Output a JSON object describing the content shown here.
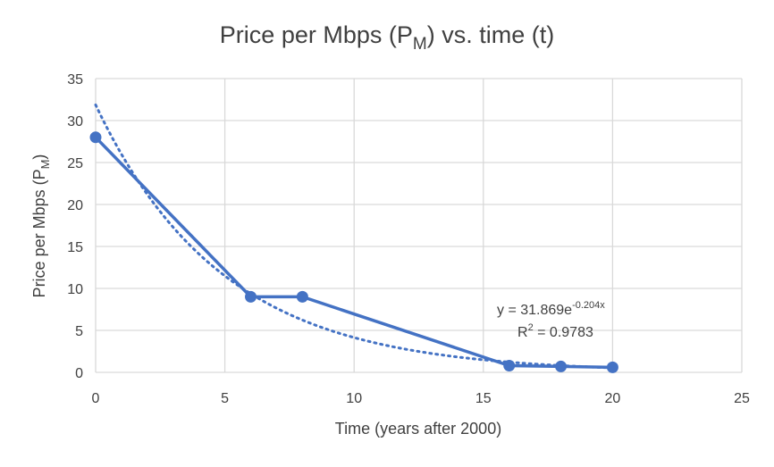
{
  "chart_data": {
    "type": "scatter",
    "title": {
      "main": "Price per Mbps (P",
      "sub": "M",
      "tail": ") vs. time (t)"
    },
    "xlabel": "Time (years after 2000)",
    "ylabel": {
      "main": "Price per Mbps (P",
      "sub": "M",
      "tail": ")"
    },
    "xlim": [
      0,
      25
    ],
    "ylim": [
      0,
      35
    ],
    "x_ticks": [
      0,
      5,
      10,
      15,
      20,
      25
    ],
    "y_ticks": [
      0,
      5,
      10,
      15,
      20,
      25,
      30,
      35
    ],
    "grid": true,
    "series": [
      {
        "x": [
          0,
          6,
          8,
          16,
          18,
          20
        ],
        "y": [
          28,
          9,
          9,
          0.8,
          0.7,
          0.6
        ],
        "color": "#4472C4",
        "style": "solid line with markers"
      }
    ],
    "trendline": {
      "type": "exponential",
      "a": 31.869,
      "b": -0.204,
      "x_range": [
        0,
        20
      ],
      "color": "#4472C4",
      "style": "dotted",
      "equation": {
        "main": "y = 31.869e",
        "sup": "-0.204x"
      },
      "r2": {
        "main": "R",
        "sup": "2",
        "tail": " = 0.9783"
      }
    }
  }
}
